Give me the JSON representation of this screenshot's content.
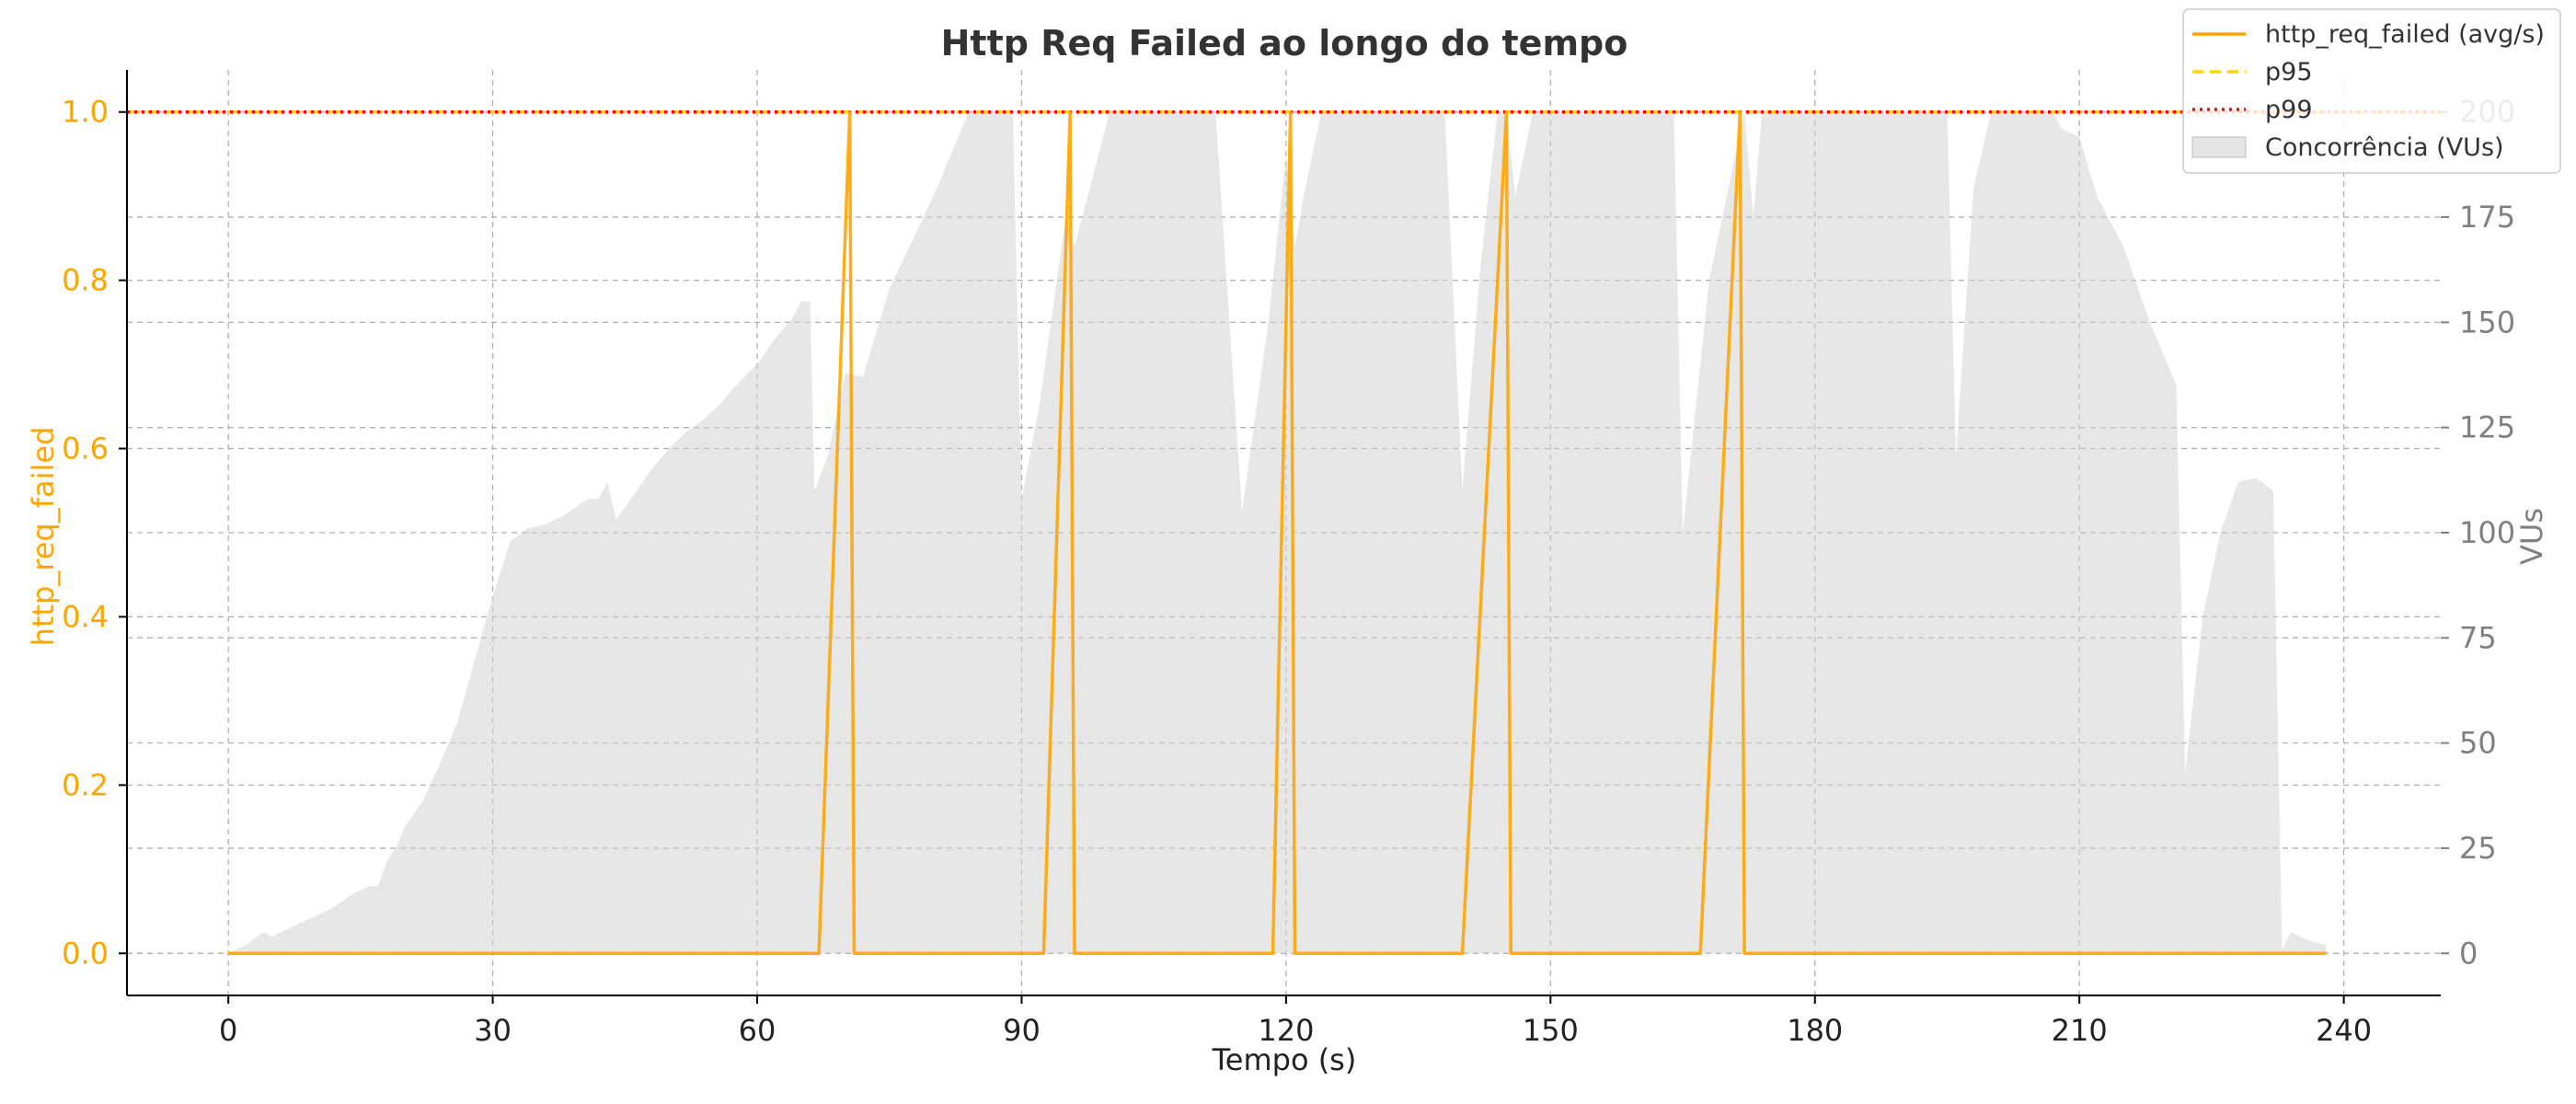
{
  "chart_data": {
    "type": "line",
    "title": "Http Req Failed ao longo do tempo",
    "xlabel": "Tempo (s)",
    "ylabel": "http_req_failed",
    "y2label": "VUs",
    "xlim": [
      -11.5,
      251
    ],
    "ylim": [
      -0.05,
      1.05
    ],
    "y2lim": [
      -10,
      210
    ],
    "x_ticks": [
      0,
      30,
      60,
      90,
      120,
      150,
      180,
      210,
      240
    ],
    "y_ticks": [
      0.0,
      0.2,
      0.4,
      0.6,
      0.8,
      1.0
    ],
    "y_tick_labels": [
      "0.0",
      "0.2",
      "0.4",
      "0.6",
      "0.8",
      "1.0"
    ],
    "y2_ticks": [
      0,
      25,
      50,
      75,
      100,
      125,
      150,
      175,
      200
    ],
    "grid": true,
    "legend_position": "top-right",
    "colors": {
      "series": "#FFA500",
      "p95": "#FFD700",
      "p99": "#FF0000",
      "vus_fill": "#D3D3D3",
      "axis_left": "#FFA500",
      "axis_right": "#808080",
      "grid": "#b0b0b0"
    },
    "series": [
      {
        "name": "http_req_failed (avg/s)",
        "style": "solid",
        "x": [
          0,
          67,
          70.5,
          71,
          92.5,
          95.5,
          96,
          118.5,
          120.5,
          121,
          140,
          145,
          145.5,
          167,
          171.5,
          172,
          238
        ],
        "y": [
          0,
          0,
          1,
          0,
          0,
          1,
          0,
          0,
          1,
          0,
          0,
          1,
          0,
          0,
          1,
          0,
          0
        ]
      },
      {
        "name": "p95",
        "style": "dashed",
        "value": 1.0
      },
      {
        "name": "p99",
        "style": "dotted",
        "value": 1.0
      }
    ],
    "area_series": {
      "name": "Concorrência (VUs)",
      "x": [
        0,
        2,
        4,
        5,
        6,
        8,
        10,
        12,
        14,
        16,
        17,
        18,
        19,
        20,
        22,
        24,
        26,
        28,
        30,
        32,
        34,
        36,
        38,
        40,
        41,
        42,
        43,
        44,
        46,
        48,
        50,
        52,
        54,
        56,
        58,
        60,
        62,
        64,
        65,
        66,
        66.5,
        68,
        70,
        72,
        75,
        80,
        84,
        85,
        89,
        90,
        92,
        94,
        95,
        96,
        100,
        104,
        112,
        115,
        118,
        120,
        121,
        122,
        124,
        130,
        138,
        140,
        142,
        144,
        145,
        146,
        148,
        156,
        164,
        165,
        168,
        172,
        173,
        174,
        182,
        195,
        196,
        198,
        200,
        205,
        207,
        208,
        210,
        212,
        215,
        218,
        220,
        221,
        222,
        224,
        226,
        228,
        230,
        232,
        233,
        234,
        236,
        238
      ],
      "y": [
        0,
        2,
        5,
        4,
        5,
        7,
        9,
        11,
        14,
        16,
        16,
        22,
        25,
        30,
        36,
        45,
        55,
        70,
        85,
        98,
        101,
        102,
        104,
        107,
        108,
        108,
        112,
        103,
        109,
        115,
        120,
        124,
        127,
        131,
        136,
        140,
        146,
        151,
        155,
        155,
        110,
        118,
        138,
        137,
        158,
        180,
        200,
        200,
        200,
        108,
        130,
        160,
        175,
        168,
        200,
        200,
        200,
        105,
        150,
        190,
        168,
        180,
        200,
        200,
        200,
        110,
        162,
        200,
        200,
        180,
        200,
        200,
        200,
        100,
        160,
        200,
        175,
        200,
        200,
        200,
        118,
        182,
        200,
        200,
        200,
        196,
        194,
        180,
        168,
        150,
        140,
        135,
        43,
        80,
        100,
        112,
        113,
        110,
        1,
        5,
        3,
        2
      ]
    }
  }
}
